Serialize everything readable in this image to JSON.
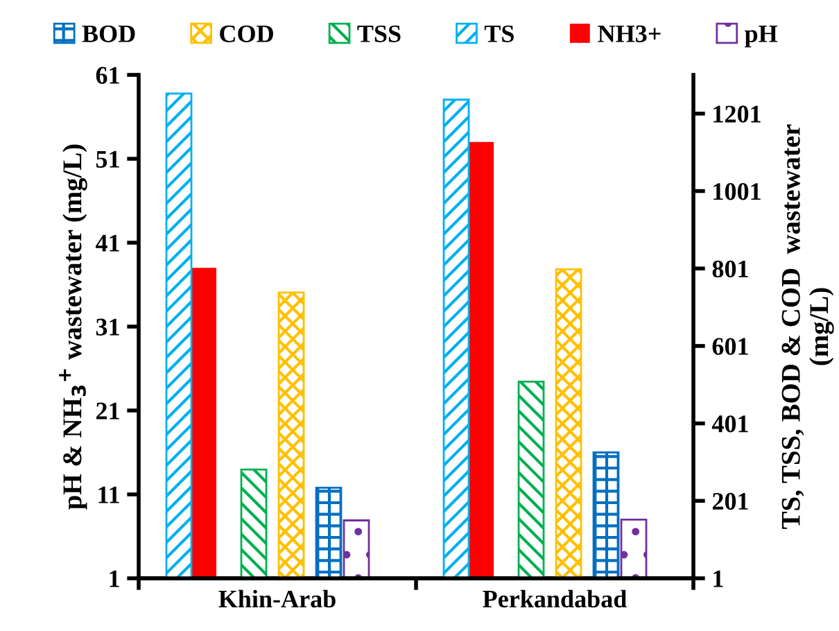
{
  "chart_data": {
    "type": "bar",
    "categories": [
      "Khin-Arab",
      "Perkandabad"
    ],
    "series": [
      {
        "name": "BOD",
        "color": "#0070c0",
        "axis": "y2",
        "values": [
          235,
          326
        ]
      },
      {
        "name": "COD",
        "color": "#ffc000",
        "axis": "y2",
        "values": [
          739,
          799
        ]
      },
      {
        "name": "TSS",
        "color": "#00b050",
        "axis": "y2",
        "values": [
          282,
          509
        ]
      },
      {
        "name": "TS",
        "color": "#00b0f0",
        "axis": "y2",
        "values": [
          1253,
          1237
        ]
      },
      {
        "name": "NH3+",
        "color": "#ff0000",
        "axis": "y",
        "values": [
          38,
          53
        ]
      },
      {
        "name": "pH",
        "color": "#7030a0",
        "axis": "y",
        "values": [
          7.9,
          8
        ]
      }
    ],
    "ylabel": "pH & NH$_{3}$$^{+}$ wastewater (mg/L)",
    "y2label": "TS, TSS, BOD & COD  wastewater\n(mg/L)",
    "ylim": [
      1,
      61
    ],
    "yticks": [
      1,
      11,
      21,
      31,
      41,
      51,
      61
    ],
    "y2lim": [
      1,
      1301
    ],
    "y2ticks": [
      1,
      201,
      401,
      601,
      801,
      1001,
      1201
    ],
    "legend": "top",
    "grid": false
  }
}
